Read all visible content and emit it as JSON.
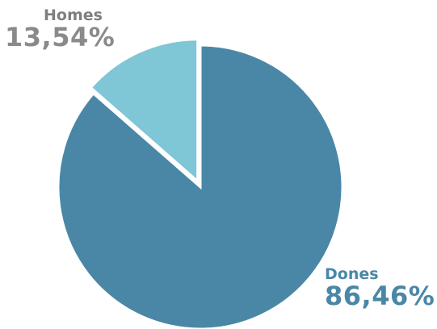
{
  "chart_data": {
    "type": "pie",
    "title": "",
    "series": [
      {
        "labels": [
          "Dones",
          "Homes"
        ],
        "values": [
          86.46,
          13.54
        ],
        "value_labels": [
          "86,46%",
          "13,54%"
        ],
        "colors": [
          "#4a87a6",
          "#7fc6d6"
        ],
        "label_colors": [
          "#4a87a6",
          "#8a8a8a"
        ]
      }
    ],
    "exploded": [
      "Homes"
    ],
    "start_angle_deg": 0,
    "direction": "clockwise",
    "legend": "none"
  }
}
